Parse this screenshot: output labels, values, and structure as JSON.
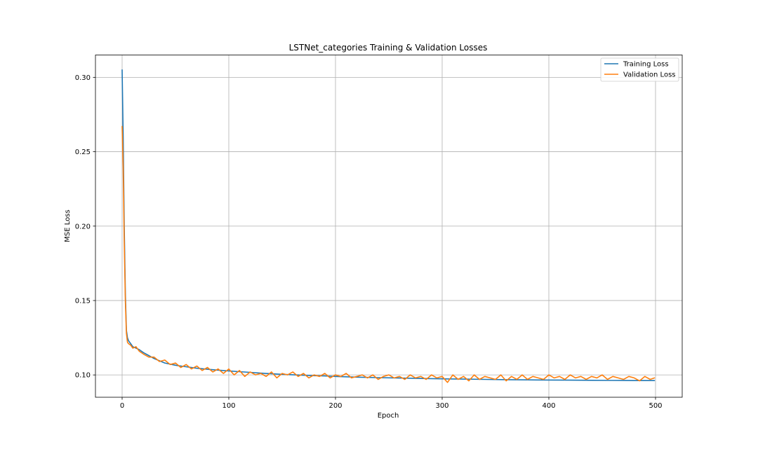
{
  "chart_data": {
    "type": "line",
    "title": "LSTNet_categories Training & Validation Losses",
    "xlabel": "Epoch",
    "ylabel": "MSE Loss",
    "xlim": [
      -25,
      525
    ],
    "ylim": [
      0.085,
      0.315
    ],
    "xticks": [
      0,
      100,
      200,
      300,
      400,
      500
    ],
    "yticks": [
      0.1,
      0.15,
      0.2,
      0.25,
      0.3
    ],
    "xtick_labels": [
      "0",
      "100",
      "200",
      "300",
      "400",
      "500"
    ],
    "ytick_labels": [
      "0.10",
      "0.15",
      "0.20",
      "0.25",
      "0.30"
    ],
    "grid": true,
    "legend_position": "top-right",
    "series": [
      {
        "name": "Training Loss",
        "color": "#1f77b4",
        "x": [
          0,
          1,
          2,
          3,
          4,
          5,
          6,
          8,
          10,
          13,
          16,
          20,
          25,
          30,
          40,
          50,
          60,
          70,
          80,
          90,
          100,
          110,
          120,
          130,
          140,
          150,
          160,
          170,
          180,
          190,
          200,
          220,
          240,
          260,
          280,
          300,
          320,
          340,
          360,
          380,
          400,
          420,
          440,
          460,
          480,
          499
        ],
        "y": [
          0.305,
          0.26,
          0.2,
          0.155,
          0.13,
          0.125,
          0.123,
          0.121,
          0.119,
          0.118,
          0.117,
          0.115,
          0.113,
          0.111,
          0.108,
          0.1065,
          0.1055,
          0.1045,
          0.1038,
          0.1032,
          0.1027,
          0.1022,
          0.1017,
          0.1012,
          0.1008,
          0.1004,
          0.1001,
          0.0998,
          0.0995,
          0.0993,
          0.099,
          0.0985,
          0.0982,
          0.0979,
          0.0976,
          0.0974,
          0.0972,
          0.097,
          0.0968,
          0.0967,
          0.0966,
          0.0965,
          0.0964,
          0.0963,
          0.0962,
          0.0962
        ]
      },
      {
        "name": "Validation Loss",
        "color": "#ff7f0e",
        "x": [
          0,
          1,
          2,
          3,
          4,
          5,
          6,
          8,
          10,
          13,
          16,
          20,
          25,
          30,
          35,
          40,
          45,
          50,
          55,
          60,
          65,
          70,
          75,
          80,
          85,
          90,
          95,
          100,
          105,
          110,
          115,
          120,
          125,
          130,
          135,
          140,
          145,
          150,
          155,
          160,
          165,
          170,
          175,
          180,
          185,
          190,
          195,
          200,
          205,
          210,
          215,
          220,
          225,
          230,
          235,
          240,
          245,
          250,
          255,
          260,
          265,
          270,
          275,
          280,
          285,
          290,
          295,
          300,
          305,
          310,
          315,
          320,
          325,
          330,
          335,
          340,
          345,
          350,
          355,
          360,
          365,
          370,
          375,
          380,
          385,
          390,
          395,
          400,
          405,
          410,
          415,
          420,
          425,
          430,
          435,
          440,
          445,
          450,
          455,
          460,
          465,
          470,
          475,
          480,
          485,
          490,
          495,
          499
        ],
        "y": [
          0.267,
          0.24,
          0.19,
          0.15,
          0.128,
          0.122,
          0.121,
          0.12,
          0.118,
          0.119,
          0.116,
          0.114,
          0.112,
          0.112,
          0.109,
          0.11,
          0.107,
          0.108,
          0.105,
          0.107,
          0.104,
          0.106,
          0.103,
          0.105,
          0.102,
          0.104,
          0.101,
          0.104,
          0.1,
          0.103,
          0.099,
          0.102,
          0.1,
          0.101,
          0.099,
          0.102,
          0.098,
          0.101,
          0.1,
          0.102,
          0.099,
          0.101,
          0.098,
          0.1,
          0.099,
          0.101,
          0.098,
          0.1,
          0.099,
          0.101,
          0.098,
          0.099,
          0.1,
          0.098,
          0.1,
          0.097,
          0.099,
          0.1,
          0.098,
          0.099,
          0.097,
          0.1,
          0.098,
          0.099,
          0.097,
          0.1,
          0.098,
          0.099,
          0.095,
          0.1,
          0.097,
          0.099,
          0.096,
          0.1,
          0.097,
          0.099,
          0.098,
          0.097,
          0.1,
          0.096,
          0.099,
          0.097,
          0.1,
          0.097,
          0.099,
          0.098,
          0.097,
          0.1,
          0.098,
          0.099,
          0.097,
          0.1,
          0.098,
          0.099,
          0.097,
          0.099,
          0.098,
          0.1,
          0.097,
          0.099,
          0.098,
          0.097,
          0.099,
          0.098,
          0.096,
          0.099,
          0.097,
          0.098
        ]
      }
    ]
  }
}
